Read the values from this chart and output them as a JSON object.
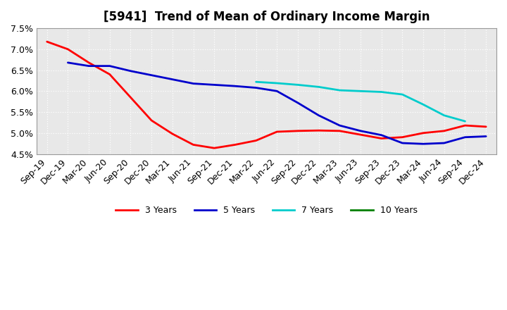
{
  "title": "[5941]  Trend of Mean of Ordinary Income Margin",
  "ylim": [
    0.045,
    0.075
  ],
  "yticks": [
    0.045,
    0.05,
    0.055,
    0.06,
    0.065,
    0.07,
    0.075
  ],
  "ytick_labels": [
    "4.5%",
    "5.0%",
    "5.5%",
    "6.0%",
    "6.5%",
    "7.0%",
    "7.5%"
  ],
  "xtick_labels": [
    "Sep-19",
    "Dec-19",
    "Mar-20",
    "Jun-20",
    "Sep-20",
    "Dec-20",
    "Mar-21",
    "Jun-21",
    "Sep-21",
    "Dec-21",
    "Mar-22",
    "Jun-22",
    "Sep-22",
    "Dec-22",
    "Mar-23",
    "Jun-23",
    "Sep-23",
    "Dec-23",
    "Mar-24",
    "Jun-24",
    "Sep-24",
    "Dec-24"
  ],
  "series_3y": [
    0.0718,
    0.07,
    0.0668,
    0.064,
    0.0585,
    0.053,
    0.0498,
    0.0472,
    0.0464,
    0.0472,
    0.0482,
    0.0503,
    0.0505,
    0.0506,
    0.0505,
    0.0496,
    0.0487,
    0.049,
    0.05,
    0.0505,
    0.0518,
    0.0515
  ],
  "series_5y": [
    null,
    0.0668,
    0.066,
    0.066,
    0.0648,
    0.0638,
    0.0628,
    0.0618,
    0.0615,
    0.0612,
    0.0608,
    0.06,
    0.0572,
    0.0542,
    0.0518,
    0.0505,
    0.0495,
    0.0476,
    0.0474,
    0.0476,
    0.049,
    0.0492
  ],
  "series_7y": [
    null,
    null,
    null,
    null,
    null,
    null,
    null,
    null,
    null,
    null,
    0.0622,
    0.0619,
    0.0615,
    0.061,
    0.0602,
    0.06,
    0.0598,
    0.0592,
    0.0568,
    0.0542,
    0.0528,
    null
  ],
  "series_10y": [
    null,
    null,
    null,
    null,
    null,
    null,
    null,
    null,
    null,
    null,
    null,
    null,
    null,
    null,
    null,
    null,
    null,
    null,
    null,
    null,
    null,
    null
  ],
  "color_3y": "#ff0000",
  "color_5y": "#0000cc",
  "color_7y": "#00cccc",
  "color_10y": "#008000",
  "plot_bg_color": "#e8e8e8",
  "fig_bg_color": "#ffffff",
  "grid_color": "#ffffff",
  "title_fontsize": 12,
  "tick_fontsize": 9
}
